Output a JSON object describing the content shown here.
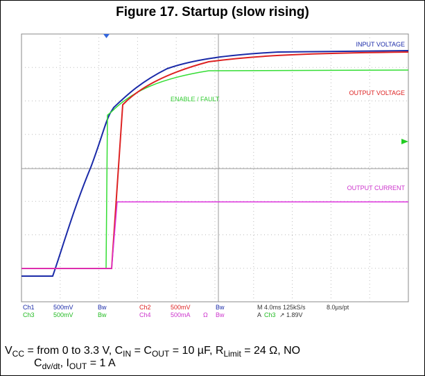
{
  "figure": {
    "title": "Figure 17. Startup (slow rising)",
    "trace_labels": {
      "input": "INPUT VOLTAGE",
      "output": "OUTPUT VOLTAGE",
      "enable": "ENABLE / FAULT",
      "current": "OUTPUT CURRENT"
    },
    "readout": {
      "row1": [
        "Ch1",
        "500mV",
        "Bw",
        "Ch2",
        "500mV",
        "Bw",
        "M 4.0ms 125kS/s",
        "8.0µs/pt"
      ],
      "row2": [
        "Ch3",
        "500mV",
        "Bw",
        "Ch4",
        "500mA",
        "Ω",
        "Bw",
        "A",
        "Ch3",
        "↗",
        "1.89V"
      ]
    },
    "caption": [
      [
        {
          "t": "V"
        },
        {
          "t": "CC",
          "sub": true
        },
        {
          "t": " = from 0 to 3.3 V, C"
        },
        {
          "t": "IN",
          "sub": true
        },
        {
          "t": " = C"
        },
        {
          "t": "OUT",
          "sub": true
        },
        {
          "t": " = 10 µF, R"
        },
        {
          "t": "Limit",
          "sub": true
        },
        {
          "t": " = 24 Ω, NO"
        }
      ],
      [
        {
          "t": "C"
        },
        {
          "t": "dv/dt",
          "sub": true
        },
        {
          "t": ", I"
        },
        {
          "t": "OUT",
          "sub": true
        },
        {
          "t": " = 1 A"
        }
      ]
    ]
  }
}
